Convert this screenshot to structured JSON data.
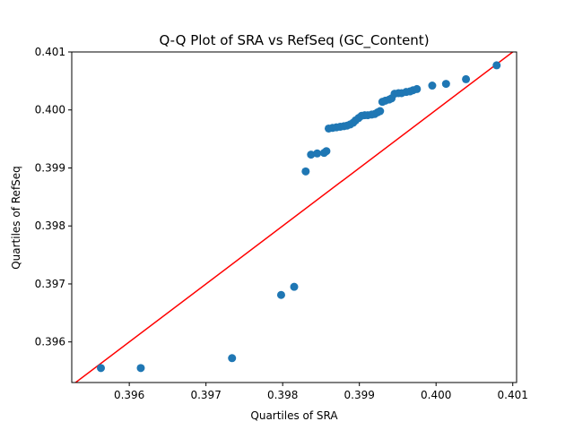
{
  "chart_data": {
    "type": "scatter",
    "title": "Q-Q Plot of SRA vs RefSeq (GC_Content)",
    "xlabel": "Quartiles of SRA",
    "ylabel": "Quartiles of RefSeq",
    "xlim": [
      0.39525,
      0.40105
    ],
    "ylim": [
      0.3953,
      0.401
    ],
    "xticks": [
      0.396,
      0.397,
      0.398,
      0.399,
      0.4,
      0.401
    ],
    "xtick_labels": [
      "0.396",
      "0.397",
      "0.398",
      "0.399",
      "0.400",
      "0.401"
    ],
    "yticks": [
      0.396,
      0.397,
      0.398,
      0.399,
      0.4,
      0.401
    ],
    "ytick_labels": [
      "0.396",
      "0.397",
      "0.398",
      "0.399",
      "0.400",
      "0.401"
    ],
    "grid": false,
    "point_color": "#1f77b4",
    "reference_line": {
      "color": "#ff0000",
      "x": [
        0.39525,
        0.40105
      ],
      "y": [
        0.39525,
        0.40105
      ]
    },
    "points": [
      [
        0.39563,
        0.39555
      ],
      [
        0.39615,
        0.39555
      ],
      [
        0.39734,
        0.39572
      ],
      [
        0.39798,
        0.39681
      ],
      [
        0.39815,
        0.39695
      ],
      [
        0.3983,
        0.39894
      ],
      [
        0.39837,
        0.39923
      ],
      [
        0.39845,
        0.39925
      ],
      [
        0.39854,
        0.39926
      ],
      [
        0.39857,
        0.39929
      ],
      [
        0.3986,
        0.39968
      ],
      [
        0.39865,
        0.39969
      ],
      [
        0.3987,
        0.3997
      ],
      [
        0.39875,
        0.39971
      ],
      [
        0.3988,
        0.39972
      ],
      [
        0.39884,
        0.39973
      ],
      [
        0.39888,
        0.39975
      ],
      [
        0.39892,
        0.39978
      ],
      [
        0.39895,
        0.39982
      ],
      [
        0.39899,
        0.39986
      ],
      [
        0.39903,
        0.3999
      ],
      [
        0.39907,
        0.39991
      ],
      [
        0.39911,
        0.39991
      ],
      [
        0.39916,
        0.39992
      ],
      [
        0.3992,
        0.39993
      ],
      [
        0.39924,
        0.39996
      ],
      [
        0.39927,
        0.39998
      ],
      [
        0.3993,
        0.40014
      ],
      [
        0.39934,
        0.40016
      ],
      [
        0.39939,
        0.40018
      ],
      [
        0.39942,
        0.4002
      ],
      [
        0.39946,
        0.40028
      ],
      [
        0.39951,
        0.40029
      ],
      [
        0.39955,
        0.40029
      ],
      [
        0.39961,
        0.40031
      ],
      [
        0.39966,
        0.40032
      ],
      [
        0.3997,
        0.40034
      ],
      [
        0.39975,
        0.40036
      ],
      [
        0.39995,
        0.40042
      ],
      [
        0.40013,
        0.40045
      ],
      [
        0.40039,
        0.40053
      ],
      [
        0.40079,
        0.40077
      ]
    ]
  }
}
